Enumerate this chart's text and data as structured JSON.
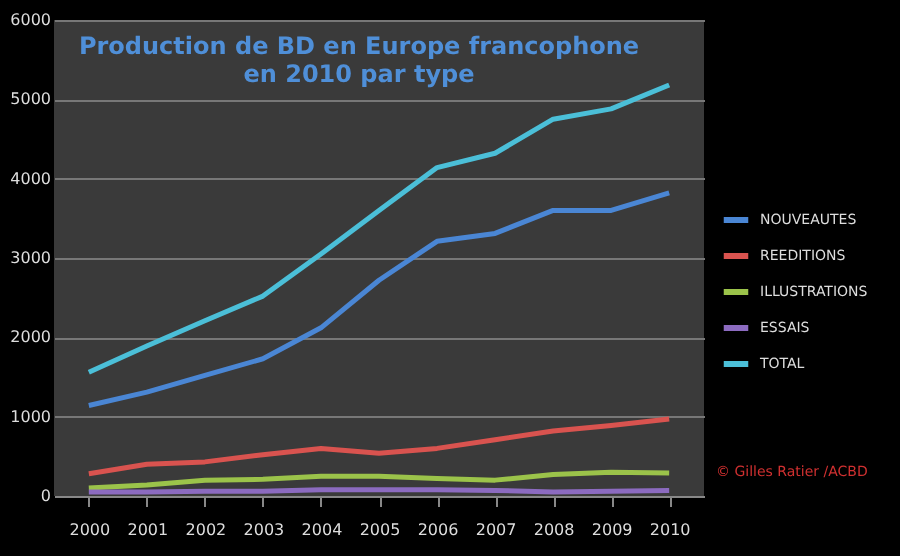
{
  "chart_data": {
    "type": "line",
    "title": "Production de BD  en Europe francophone\nen 2010 par type",
    "categories": [
      "2000",
      "2001",
      "2002",
      "2003",
      "2004",
      "2005",
      "2006",
      "2007",
      "2008",
      "2009",
      "2010"
    ],
    "series": [
      {
        "name": "NOUVEAUTES",
        "color": "#4a86d4",
        "values": [
          1140,
          1310,
          1520,
          1730,
          2120,
          2720,
          3210,
          3310,
          3600,
          3600,
          3820
        ]
      },
      {
        "name": "REEDITIONS",
        "color": "#d9534f",
        "values": [
          280,
          400,
          430,
          520,
          600,
          540,
          600,
          710,
          820,
          890,
          970
        ]
      },
      {
        "name": "ILLUSTRATIONS",
        "color": "#9bc34a",
        "values": [
          100,
          140,
          200,
          210,
          250,
          250,
          220,
          200,
          270,
          300,
          290
        ]
      },
      {
        "name": "ESSAIS",
        "color": "#8c6bc0",
        "values": [
          50,
          50,
          60,
          60,
          80,
          80,
          80,
          70,
          50,
          60,
          70
        ]
      },
      {
        "name": "TOTAL",
        "color": "#4bbfd8",
        "values": [
          1560,
          1890,
          2210,
          2520,
          3050,
          3600,
          4140,
          4320,
          4750,
          4880,
          5180
        ]
      }
    ],
    "ylim": [
      0,
      6000
    ],
    "yticks": [
      0,
      1000,
      2000,
      3000,
      4000,
      5000,
      6000
    ],
    "grid": "y",
    "legend": "right",
    "marker": "none",
    "line_style": "solid",
    "annotations": [
      "© Gilles Ratier /ACBD"
    ]
  }
}
